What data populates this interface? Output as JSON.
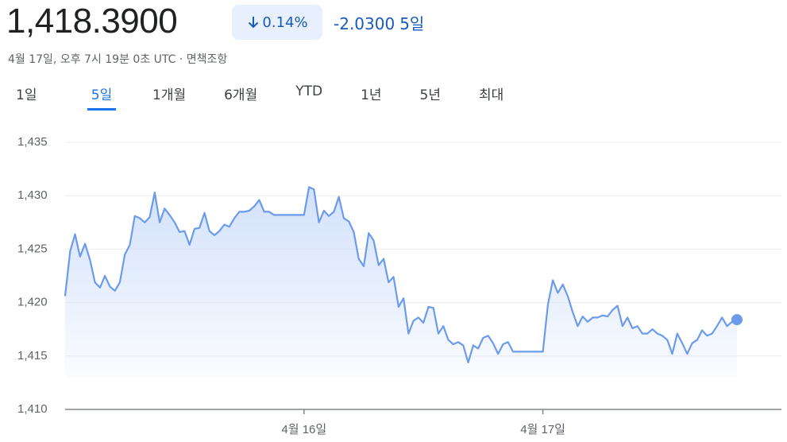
{
  "quote": {
    "price": "1,418.3900",
    "change_pct": "0.14%",
    "change": "-2.0300",
    "period": "5일",
    "timestamp": "4월 17일, 오후 7시 19분 0초 UTC · 면책조항"
  },
  "tabs": [
    "1일",
    "5일",
    "1개월",
    "6개월",
    "YTD",
    "1년",
    "5년",
    "최대"
  ],
  "chart_data": {
    "type": "line",
    "color": "#6b9bea",
    "grid": true,
    "ylim": [
      1410,
      1435
    ],
    "yticks": [
      {
        "value": 1410,
        "label": "1,410"
      },
      {
        "value": 1415,
        "label": "1,415"
      },
      {
        "value": 1420,
        "label": "1,420"
      },
      {
        "value": 1425,
        "label": "1,425"
      },
      {
        "value": 1430,
        "label": "1,430"
      },
      {
        "value": 1435,
        "label": "1,435"
      }
    ],
    "categories": [
      null,
      null,
      null,
      null,
      null,
      null,
      null,
      null,
      null,
      null,
      null,
      null,
      null,
      null,
      null,
      null,
      null,
      null,
      null,
      null,
      null,
      null,
      null,
      null,
      null,
      null,
      null,
      null,
      null,
      null,
      null,
      null,
      null,
      null,
      null,
      null,
      null,
      null,
      null,
      null,
      null,
      null,
      null,
      null,
      null,
      null,
      null,
      null,
      "4월 16일",
      null,
      null,
      null,
      null,
      null,
      null,
      null,
      null,
      null,
      null,
      null,
      null,
      null,
      null,
      null,
      null,
      null,
      null,
      null,
      null,
      null,
      null,
      null,
      null,
      null,
      null,
      null,
      null,
      null,
      null,
      null,
      null,
      null,
      null,
      null,
      null,
      null,
      null,
      null,
      null,
      null,
      null,
      null,
      null,
      null,
      null,
      null,
      "4월 17일",
      null,
      null,
      null,
      null,
      null,
      null,
      null,
      null,
      null,
      null,
      null,
      null,
      null,
      null,
      null,
      null,
      null,
      null,
      null,
      null,
      null,
      null,
      null,
      null,
      null,
      null,
      null,
      null,
      null,
      null,
      null,
      null,
      null,
      null,
      null,
      null,
      null,
      null,
      null
    ],
    "values": [
      1420.6,
      1424.8,
      1426.4,
      1424.3,
      1425.5,
      1424.0,
      1421.9,
      1421.4,
      1422.5,
      1421.5,
      1421.1,
      1421.9,
      1424.5,
      1425.4,
      1428.1,
      1427.9,
      1427.5,
      1428.0,
      1430.3,
      1427.5,
      1428.8,
      1428.2,
      1427.5,
      1426.6,
      1426.7,
      1425.4,
      1426.9,
      1427.0,
      1428.4,
      1426.7,
      1426.3,
      1426.7,
      1427.3,
      1427.1,
      1427.9,
      1428.5,
      1428.5,
      1428.6,
      1429.0,
      1429.6,
      1428.5,
      1428.5,
      1428.2,
      1428.2,
      1428.2,
      1428.2,
      1428.2,
      1428.2,
      1428.2,
      1430.8,
      1430.6,
      1427.5,
      1428.6,
      1428.1,
      1428.5,
      1429.9,
      1427.9,
      1427.6,
      1426.6,
      1424.1,
      1423.4,
      1426.5,
      1425.8,
      1423.5,
      1424.1,
      1421.9,
      1422.4,
      1419.6,
      1420.4,
      1417.1,
      1418.3,
      1418.6,
      1418.1,
      1419.6,
      1419.5,
      1417.1,
      1417.8,
      1416.5,
      1416.1,
      1416.3,
      1416.0,
      1414.4,
      1416.0,
      1415.7,
      1416.7,
      1416.9,
      1416.2,
      1415.2,
      1416.1,
      1416.3,
      1415.4,
      1415.4,
      1415.4,
      1415.4,
      1415.4,
      1415.4,
      1415.4,
      1419.8,
      1422.1,
      1420.9,
      1421.7,
      1420.6,
      1419.1,
      1417.8,
      1418.7,
      1418.2,
      1418.6,
      1418.6,
      1418.8,
      1418.7,
      1419.3,
      1419.7,
      1417.8,
      1418.6,
      1417.6,
      1417.8,
      1417.1,
      1417.1,
      1417.5,
      1417.1,
      1416.9,
      1416.5,
      1415.2,
      1417.1,
      1416.2,
      1415.2,
      1416.2,
      1416.5,
      1417.4,
      1416.9,
      1417.1,
      1417.8,
      1418.6,
      1417.8,
      1418.2,
      1418.4
    ]
  }
}
